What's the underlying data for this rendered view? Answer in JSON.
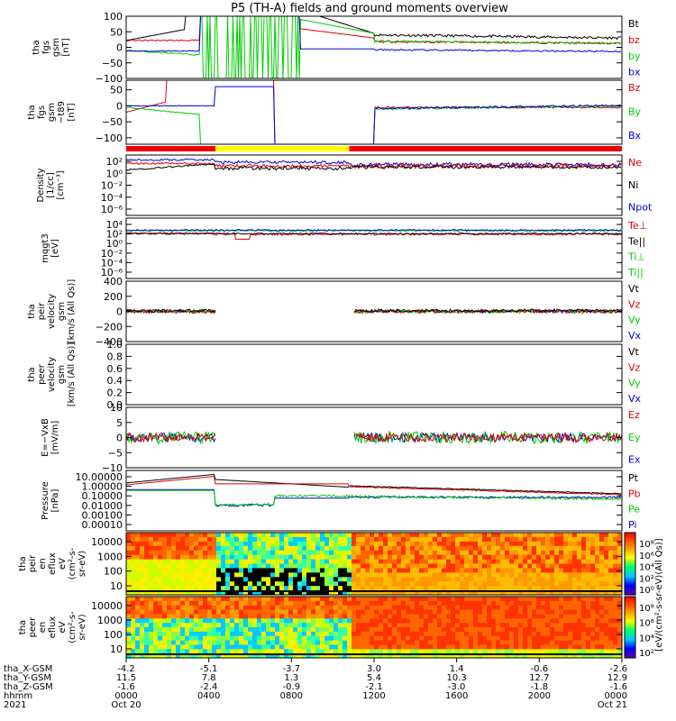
{
  "figure": {
    "title": "P5 (TH-A) fields and ground moments overview"
  },
  "panels": [
    {
      "ylabel": [
        "tha",
        "fgs",
        "gsm",
        "[nT]"
      ],
      "type": "line",
      "ylim": [
        -100,
        100
      ],
      "yticks": [
        "100",
        "50",
        "0",
        "−50",
        "−100"
      ],
      "ytick_values": [
        100,
        50,
        0,
        -50,
        -100
      ],
      "legend": [
        {
          "label": "Bt",
          "color": "#000000"
        },
        {
          "label": "bz",
          "color": "#dd0000"
        },
        {
          "label": "by",
          "color": "#00cc00"
        },
        {
          "label": "bx",
          "color": "#0000dd"
        }
      ]
    },
    {
      "ylabel": [
        "tha",
        "fgs",
        "gsm",
        "−t89",
        "[nT]"
      ],
      "type": "line",
      "ylim": [
        -120,
        80
      ],
      "yticks": [
        "50",
        "0",
        "−50",
        "−100"
      ],
      "ytick_values": [
        50,
        0,
        -50,
        -100
      ],
      "legend": [
        {
          "label": "Bz",
          "color": "#dd0000"
        },
        {
          "label": "By",
          "color": "#00cc00"
        },
        {
          "label": "Bx",
          "color": "#0000dd"
        }
      ]
    },
    {
      "ylabel": [
        "Density",
        "[1/cc]",
        "[cm⁻³]"
      ],
      "type": "line",
      "scale": "log",
      "ylim": [
        "1e-7",
        "1e3"
      ],
      "yticks": [
        "10²",
        "10⁰",
        "10⁻²",
        "10⁻⁴",
        "10⁻⁶"
      ],
      "legend": [
        {
          "label": "Ne",
          "color": "#dd0000"
        },
        {
          "label": "Ni",
          "color": "#000000"
        },
        {
          "label": "Npot",
          "color": "#0000dd"
        }
      ]
    },
    {
      "ylabel": [
        "mqgt3",
        "[eV]"
      ],
      "type": "line",
      "scale": "log",
      "ylim": [
        "1e-7",
        "1e5"
      ],
      "yticks": [
        "10⁴",
        "10²",
        "10⁰",
        "10⁻²",
        "10⁻⁴",
        "10⁻⁶"
      ],
      "legend": [
        {
          "label": "Te⊥",
          "color": "#dd0000"
        },
        {
          "label": "Te||",
          "color": "#000000"
        },
        {
          "label": "Ti⊥",
          "color": "#00cc00"
        },
        {
          "label": "Ti||",
          "color": "#00cc00"
        }
      ]
    },
    {
      "ylabel": [
        "tha",
        "peir",
        "velocity",
        "gsm",
        "[km/s (All Qs)]"
      ],
      "type": "line",
      "ylim": [
        -400,
        400
      ],
      "yticks": [
        "400",
        "200",
        "0",
        "−200",
        "−400"
      ],
      "ytick_values": [
        400,
        200,
        0,
        -200,
        -400
      ],
      "legend": [
        {
          "label": "Vt",
          "color": "#000000"
        },
        {
          "label": "Vz",
          "color": "#dd0000"
        },
        {
          "label": "Vy",
          "color": "#00cc00"
        },
        {
          "label": "Vx",
          "color": "#0000dd"
        }
      ]
    },
    {
      "ylabel": [
        "tha",
        "peer",
        "velocity",
        "gsm",
        "[km/s (All Qs)]"
      ],
      "type": "line",
      "ylim": [
        0,
        1
      ],
      "yticks": [
        "1.0",
        "0.8",
        "0.6",
        "0.4",
        "0.2",
        "0.0"
      ],
      "ytick_values": [
        1.0,
        0.8,
        0.6,
        0.4,
        0.2,
        0.0
      ],
      "legend": [
        {
          "label": "Vt",
          "color": "#000000"
        },
        {
          "label": "Vz",
          "color": "#dd0000"
        },
        {
          "label": "Vy",
          "color": "#00cc00"
        },
        {
          "label": "Vx",
          "color": "#0000dd"
        }
      ]
    },
    {
      "ylabel": [
        "E=−VxB",
        "[mV/m]"
      ],
      "type": "line",
      "ylim": [
        -10,
        10
      ],
      "yticks": [
        "10",
        "5",
        "0",
        "−5",
        "−10"
      ],
      "ytick_values": [
        10,
        5,
        0,
        -5,
        -10
      ],
      "legend": [
        {
          "label": "Ez",
          "color": "#dd0000"
        },
        {
          "label": "Ey",
          "color": "#00cc00"
        },
        {
          "label": "Ex",
          "color": "#0000dd"
        }
      ]
    },
    {
      "ylabel": [
        "Pressure",
        "[nPa]"
      ],
      "type": "line",
      "scale": "log",
      "ylim": [
        "1e-5",
        "2e1"
      ],
      "yticks": [
        "10.00000",
        "1.00000",
        "0.10000",
        "0.01000",
        "0.00100",
        "0.00010"
      ],
      "legend": [
        {
          "label": "Pt",
          "color": "#000000"
        },
        {
          "label": "Pb",
          "color": "#dd0000"
        },
        {
          "label": "Pe",
          "color": "#00cc00"
        },
        {
          "label": "Pi",
          "color": "#0000dd"
        }
      ]
    },
    {
      "ylabel": [
        "tha",
        "peir",
        "en",
        "eflux",
        "eV",
        "(cm²-s-",
        "sr-eV)"
      ],
      "type": "heatmap",
      "yticks": [
        "10000",
        "1000",
        "100",
        "10"
      ]
    },
    {
      "ylabel": [
        "tha",
        "peer",
        "en",
        "eflux",
        "eV",
        "(cm²-s-",
        "sr-eV)"
      ],
      "type": "heatmap",
      "yticks": [
        "10000",
        "1000",
        "100",
        "10"
      ]
    }
  ],
  "colorbar": {
    "label": "[eV/(cm²-s-sr-eV)(All Qs)]",
    "ticks_upper": [
      "10⁸",
      "10⁶",
      "10⁴",
      "10²",
      "10⁰"
    ],
    "ticks_lower": [
      "10⁸",
      "10⁶",
      "10⁴",
      "10²"
    ]
  },
  "chart_data": {
    "type": "line",
    "title": "P5 (TH-A) fields and ground moments overview",
    "x_axis": {
      "label_rows": [
        "tha_X-GSM",
        "tha_Y-GSM",
        "tha_Z-GSM",
        "hhmm",
        "2021"
      ],
      "ticks": [
        {
          "x": "-4.2",
          "y": "11.5",
          "z": "-1.6",
          "hhmm": "0000",
          "date": "Oct 20"
        },
        {
          "x": "-5.1",
          "y": "7.8",
          "z": "-2.4",
          "hhmm": "0400",
          "date": ""
        },
        {
          "x": "-3.7",
          "y": "1.3",
          "z": "-0.9",
          "hhmm": "0800",
          "date": ""
        },
        {
          "x": "3.0",
          "y": "5.4",
          "z": "-2.1",
          "hhmm": "1200",
          "date": ""
        },
        {
          "x": "1.4",
          "y": "10.3",
          "z": "-3.0",
          "hhmm": "1600",
          "date": ""
        },
        {
          "x": "-0.6",
          "y": "12.7",
          "z": "-1.8",
          "hhmm": "2000",
          "date": ""
        },
        {
          "x": "-2.6",
          "y": "12.9",
          "z": "-1.6",
          "hhmm": "0000",
          "date": "Oct 21"
        }
      ]
    },
    "hours": [
      0,
      4,
      8,
      12,
      16,
      20,
      24
    ]
  }
}
